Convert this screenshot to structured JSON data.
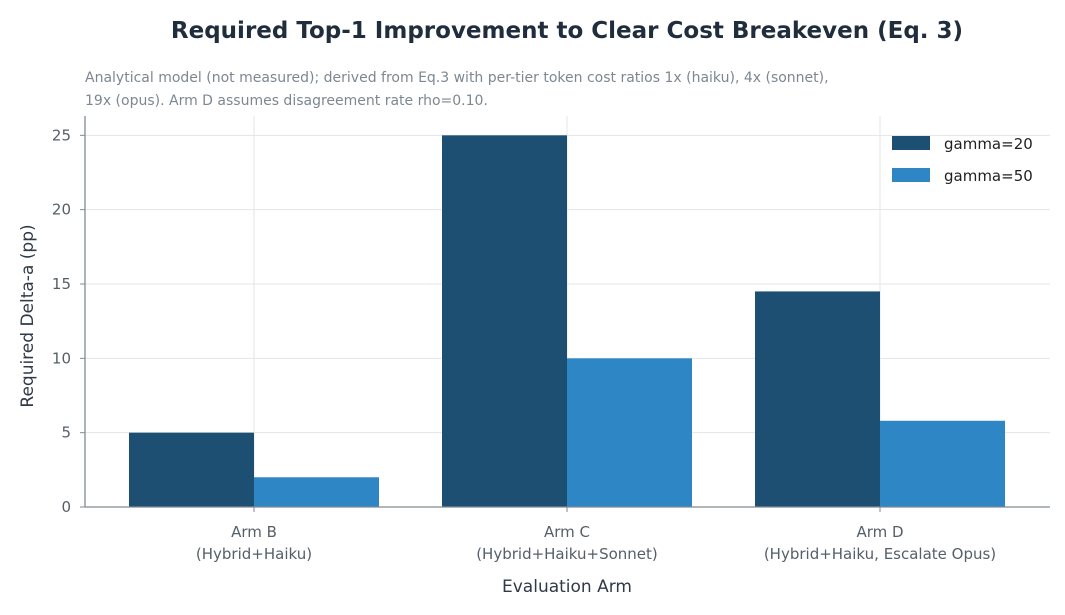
{
  "chart_data": {
    "type": "bar",
    "title": "Required Top-1 Improvement to Clear Cost Breakeven (Eq. 3)",
    "subtitle_lines": [
      "Analytical model (not measured); derived from Eq.3 with per-tier token cost ratios 1x (haiku), 4x (sonnet),",
      "19x (opus). Arm D assumes disagreement rate rho=0.10."
    ],
    "xlabel": "Evaluation Arm",
    "ylabel": "Required Delta-a (pp)",
    "ylim": [
      0,
      26.3
    ],
    "yticks": [
      0,
      5,
      10,
      15,
      20,
      25
    ],
    "grid": true,
    "legend_position": "top-right",
    "categories": [
      [
        "Arm B",
        "(Hybrid+Haiku)"
      ],
      [
        "Arm C",
        "(Hybrid+Haiku+Sonnet)"
      ],
      [
        "Arm D",
        "(Hybrid+Haiku, Escalate Opus)"
      ]
    ],
    "series": [
      {
        "name": "gamma=20",
        "color": "#1c4f72",
        "values": [
          5.0,
          25.0,
          14.5
        ]
      },
      {
        "name": "gamma=50",
        "color": "#2e86c4",
        "values": [
          2.0,
          10.0,
          5.8
        ]
      }
    ]
  }
}
